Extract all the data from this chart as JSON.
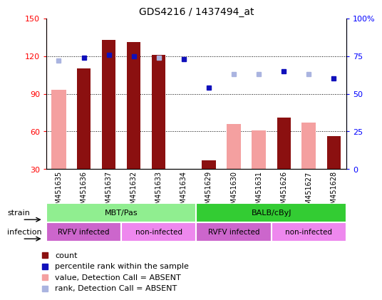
{
  "title": "GDS4216 / 1437494_at",
  "samples": [
    "GSM451635",
    "GSM451636",
    "GSM451637",
    "GSM451632",
    "GSM451633",
    "GSM451634",
    "GSM451629",
    "GSM451630",
    "GSM451631",
    "GSM451626",
    "GSM451627",
    "GSM451628"
  ],
  "count_values": [
    null,
    110,
    133,
    131,
    121,
    null,
    37,
    null,
    null,
    71,
    null,
    56
  ],
  "count_absent": [
    93,
    null,
    null,
    null,
    null,
    null,
    null,
    66,
    61,
    null,
    67,
    null
  ],
  "percentile_values": [
    null,
    74,
    76,
    75,
    null,
    73,
    54,
    null,
    null,
    65,
    null,
    60
  ],
  "percentile_absent": [
    72,
    null,
    null,
    null,
    74,
    null,
    null,
    63,
    63,
    null,
    63,
    null
  ],
  "ylim_left": [
    30,
    150
  ],
  "ylim_right": [
    0,
    100
  ],
  "yticks_left": [
    30,
    60,
    90,
    120,
    150
  ],
  "yticks_right": [
    0,
    25,
    50,
    75,
    100
  ],
  "strain_groups": [
    {
      "label": "MBT/Pas",
      "start": 0,
      "end": 6,
      "color": "#90ee90"
    },
    {
      "label": "BALB/cByJ",
      "start": 6,
      "end": 12,
      "color": "#33cc33"
    }
  ],
  "infection_groups": [
    {
      "label": "RVFV infected",
      "start": 0,
      "end": 3,
      "color": "#cc66cc"
    },
    {
      "label": "non-infected",
      "start": 3,
      "end": 6,
      "color": "#ee88ee"
    },
    {
      "label": "RVFV infected",
      "start": 6,
      "end": 9,
      "color": "#cc66cc"
    },
    {
      "label": "non-infected",
      "start": 9,
      "end": 12,
      "color": "#ee88ee"
    }
  ],
  "bar_width": 0.55,
  "color_count": "#8b1010",
  "color_count_absent": "#f4a0a0",
  "color_pct": "#1010bb",
  "color_pct_absent": "#aab4e0",
  "legend_items": [
    {
      "label": "count",
      "color": "#8b1010"
    },
    {
      "label": "percentile rank within the sample",
      "color": "#1010bb"
    },
    {
      "label": "value, Detection Call = ABSENT",
      "color": "#f4a0a0"
    },
    {
      "label": "rank, Detection Call = ABSENT",
      "color": "#aab4e0"
    }
  ]
}
